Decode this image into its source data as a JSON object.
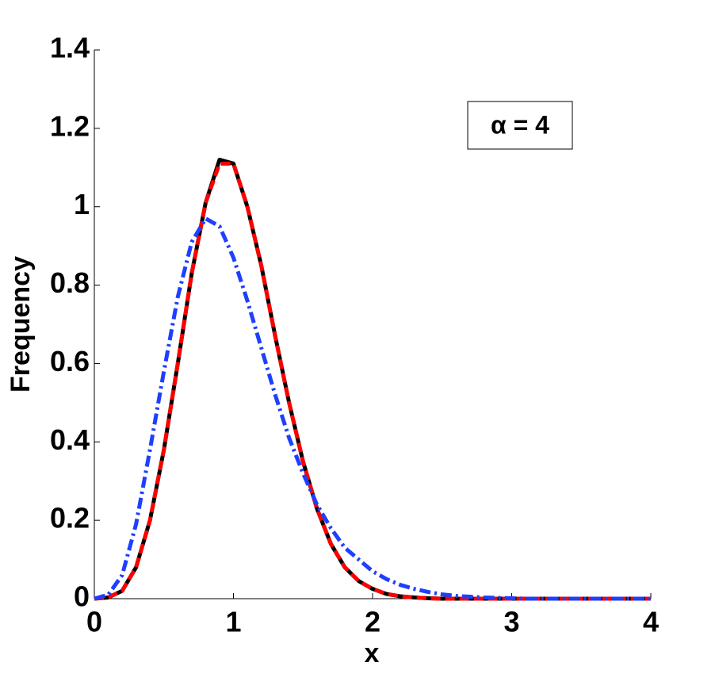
{
  "chart_data": {
    "type": "line",
    "xlabel": "x",
    "ylabel": "Frequency",
    "annotation": "α = 4",
    "x": [
      0,
      0.1,
      0.2,
      0.3,
      0.4,
      0.5,
      0.6,
      0.7,
      0.8,
      0.9,
      1.0,
      1.1,
      1.2,
      1.3,
      1.4,
      1.5,
      1.6,
      1.7,
      1.8,
      1.9,
      2.0,
      2.1,
      2.2,
      2.3,
      2.4,
      2.5,
      2.6,
      2.7,
      2.8,
      2.9,
      3.0,
      3.1,
      3.2,
      3.3,
      3.4,
      3.5,
      3.6,
      3.7,
      3.8,
      3.9,
      4.0
    ],
    "series": [
      {
        "color": "#000000",
        "dash": "solid",
        "values": [
          0,
          0.003,
          0.02,
          0.08,
          0.2,
          0.38,
          0.6,
          0.83,
          1.01,
          1.12,
          1.11,
          1.0,
          0.85,
          0.67,
          0.5,
          0.35,
          0.23,
          0.14,
          0.08,
          0.045,
          0.025,
          0.012,
          0.006,
          0.003,
          0.001,
          0,
          0,
          0,
          0,
          0,
          0,
          0,
          0,
          0,
          0,
          0,
          0,
          0,
          0,
          0,
          0
        ]
      },
      {
        "color": "#ff0000",
        "dash": "dashed",
        "values": [
          0,
          0.003,
          0.02,
          0.08,
          0.2,
          0.38,
          0.6,
          0.83,
          1.01,
          1.11,
          1.11,
          1.0,
          0.85,
          0.67,
          0.5,
          0.35,
          0.23,
          0.14,
          0.08,
          0.045,
          0.025,
          0.012,
          0.006,
          0.003,
          0.001,
          0,
          0,
          0,
          0,
          0,
          0,
          0,
          0,
          0,
          0,
          0,
          0,
          0,
          0,
          0,
          0
        ]
      },
      {
        "color": "#1f3fff",
        "dash": "dashdot",
        "values": [
          0,
          0.01,
          0.06,
          0.19,
          0.38,
          0.58,
          0.77,
          0.91,
          0.97,
          0.95,
          0.87,
          0.76,
          0.64,
          0.52,
          0.41,
          0.32,
          0.24,
          0.18,
          0.13,
          0.1,
          0.07,
          0.05,
          0.035,
          0.025,
          0.017,
          0.011,
          0.007,
          0.005,
          0.003,
          0.002,
          0.001,
          0,
          0,
          0,
          0,
          0,
          0,
          0,
          0,
          0,
          0
        ]
      }
    ],
    "xlim": [
      0,
      4
    ],
    "xticks": [
      0,
      1,
      2,
      3,
      4
    ],
    "ylim": [
      0,
      1.4
    ],
    "yticks": [
      0,
      0.2,
      0.4,
      0.6,
      0.8,
      1,
      1.2,
      1.4
    ]
  }
}
